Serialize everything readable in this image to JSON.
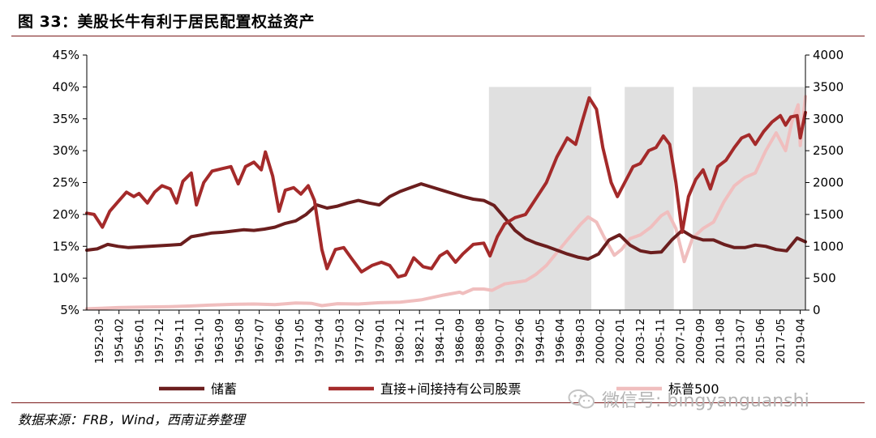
{
  "header": {
    "title": "图 33：美股长牛有利于居民配置权益资产"
  },
  "footer": {
    "source": "数据来源：FRB，Wind，西南证券整理"
  },
  "watermark": {
    "icon": "wechat-icon",
    "text": "微信号: bingyanguanshi"
  },
  "chart_data": {
    "type": "line",
    "x_ticks": [
      "1952-03",
      "1954-02",
      "1956-01",
      "1957-12",
      "1959-11",
      "1961-10",
      "1963-09",
      "1965-08",
      "1967-07",
      "1969-06",
      "1971-05",
      "1973-04",
      "1975-03",
      "1977-02",
      "1979-01",
      "1980-12",
      "1982-11",
      "1984-10",
      "1986-09",
      "1988-08",
      "1990-07",
      "1992-06",
      "1994-05",
      "1996-04",
      "1998-03",
      "2000-02",
      "2002-01",
      "2003-12",
      "2005-11",
      "2007-10",
      "2009-09",
      "2011-08",
      "2013-07",
      "2015-06",
      "2017-05",
      "2019-04"
    ],
    "x_range": [
      1952.0,
      2020.8
    ],
    "y_left": {
      "ticks": [
        "5%",
        "10%",
        "15%",
        "20%",
        "25%",
        "30%",
        "35%",
        "40%",
        "45%"
      ],
      "range": [
        5,
        45
      ]
    },
    "y_right": {
      "ticks": [
        "0",
        "500",
        "1000",
        "1500",
        "2000",
        "2500",
        "3000",
        "3500",
        "4000"
      ],
      "range": [
        0,
        4000
      ]
    },
    "shaded_periods": [
      [
        1990.5,
        2000.3
      ],
      [
        2003.5,
        2008.2
      ],
      [
        2010.0,
        2020.8
      ]
    ],
    "shade_color": "#e0e0e0",
    "legend_position": "bottom",
    "series": [
      {
        "name": "储蓄",
        "axis": "left",
        "color": "#6b1e1e",
        "points": [
          [
            1952.0,
            14.4
          ],
          [
            1953,
            14.6
          ],
          [
            1954,
            15.3
          ],
          [
            1955,
            15.0
          ],
          [
            1956,
            14.8
          ],
          [
            1957,
            14.9
          ],
          [
            1958,
            15.0
          ],
          [
            1959,
            15.1
          ],
          [
            1960,
            15.2
          ],
          [
            1961,
            15.3
          ],
          [
            1962,
            16.5
          ],
          [
            1963,
            16.8
          ],
          [
            1964,
            17.1
          ],
          [
            1965,
            17.2
          ],
          [
            1966,
            17.4
          ],
          [
            1967,
            17.6
          ],
          [
            1968,
            17.5
          ],
          [
            1969,
            17.7
          ],
          [
            1970,
            18.0
          ],
          [
            1971,
            18.6
          ],
          [
            1972,
            19.0
          ],
          [
            1973,
            20.0
          ],
          [
            1974,
            21.5
          ],
          [
            1975,
            21.0
          ],
          [
            1976,
            21.3
          ],
          [
            1977,
            21.8
          ],
          [
            1978,
            22.2
          ],
          [
            1979,
            21.8
          ],
          [
            1980,
            21.5
          ],
          [
            1981,
            22.8
          ],
          [
            1982,
            23.6
          ],
          [
            1983,
            24.2
          ],
          [
            1984,
            24.8
          ],
          [
            1985,
            24.3
          ],
          [
            1986,
            23.8
          ],
          [
            1987,
            23.3
          ],
          [
            1988,
            22.8
          ],
          [
            1989,
            22.4
          ],
          [
            1990,
            22.2
          ],
          [
            1991,
            21.4
          ],
          [
            1992,
            19.5
          ],
          [
            1993,
            17.5
          ],
          [
            1994,
            16.2
          ],
          [
            1995,
            15.5
          ],
          [
            1996,
            15.0
          ],
          [
            1997,
            14.4
          ],
          [
            1998,
            13.8
          ],
          [
            1999,
            13.3
          ],
          [
            2000,
            13.0
          ],
          [
            2001,
            13.8
          ],
          [
            2002,
            16.0
          ],
          [
            2003,
            16.8
          ],
          [
            2004,
            15.2
          ],
          [
            2005,
            14.3
          ],
          [
            2006,
            14.0
          ],
          [
            2007,
            14.1
          ],
          [
            2008,
            16.0
          ],
          [
            2009,
            17.5
          ],
          [
            2010,
            16.5
          ],
          [
            2011,
            16.0
          ],
          [
            2012,
            16.0
          ],
          [
            2013,
            15.3
          ],
          [
            2014,
            14.8
          ],
          [
            2015,
            14.8
          ],
          [
            2016,
            15.2
          ],
          [
            2017,
            15.0
          ],
          [
            2018,
            14.5
          ],
          [
            2019,
            14.3
          ],
          [
            2020,
            16.3
          ],
          [
            2020.8,
            15.7
          ]
        ]
      },
      {
        "name": "直接+间接持有公司股票",
        "axis": "left",
        "color": "#a42a2a",
        "points": [
          [
            1952.0,
            20.2
          ],
          [
            1952.7,
            20.0
          ],
          [
            1953.5,
            18.0
          ],
          [
            1954.2,
            20.5
          ],
          [
            1955,
            22.0
          ],
          [
            1955.8,
            23.5
          ],
          [
            1956.5,
            22.8
          ],
          [
            1957,
            23.3
          ],
          [
            1957.8,
            21.8
          ],
          [
            1958.5,
            23.5
          ],
          [
            1959.2,
            24.5
          ],
          [
            1960,
            24.0
          ],
          [
            1960.6,
            21.8
          ],
          [
            1961.2,
            25.2
          ],
          [
            1962,
            26.5
          ],
          [
            1962.5,
            21.5
          ],
          [
            1963.2,
            25.0
          ],
          [
            1964,
            26.8
          ],
          [
            1965,
            27.2
          ],
          [
            1965.8,
            27.5
          ],
          [
            1966.5,
            24.8
          ],
          [
            1967.2,
            27.5
          ],
          [
            1968,
            28.2
          ],
          [
            1968.7,
            27.0
          ],
          [
            1969.1,
            29.8
          ],
          [
            1969.8,
            26.0
          ],
          [
            1970.4,
            20.5
          ],
          [
            1971,
            23.8
          ],
          [
            1971.8,
            24.2
          ],
          [
            1972.5,
            23.2
          ],
          [
            1973.2,
            24.5
          ],
          [
            1973.8,
            22.2
          ],
          [
            1974.5,
            14.5
          ],
          [
            1975,
            11.5
          ],
          [
            1975.8,
            14.5
          ],
          [
            1976.6,
            14.8
          ],
          [
            1977.3,
            13.2
          ],
          [
            1978.3,
            11.0
          ],
          [
            1979.3,
            12.0
          ],
          [
            1980.2,
            12.5
          ],
          [
            1981,
            12.0
          ],
          [
            1981.8,
            10.2
          ],
          [
            1982.5,
            10.5
          ],
          [
            1983.3,
            13.2
          ],
          [
            1984.2,
            11.8
          ],
          [
            1985,
            11.5
          ],
          [
            1985.8,
            13.5
          ],
          [
            1986.5,
            14.2
          ],
          [
            1987.3,
            12.5
          ],
          [
            1988,
            13.8
          ],
          [
            1989,
            15.3
          ],
          [
            1990,
            15.5
          ],
          [
            1990.6,
            13.5
          ],
          [
            1991.3,
            16.5
          ],
          [
            1992,
            18.5
          ],
          [
            1993,
            19.5
          ],
          [
            1994,
            20.0
          ],
          [
            1995,
            22.5
          ],
          [
            1996,
            25.0
          ],
          [
            1997,
            29.0
          ],
          [
            1998,
            32.0
          ],
          [
            1998.8,
            31.0
          ],
          [
            1999.5,
            35.0
          ],
          [
            2000.1,
            38.3
          ],
          [
            2000.8,
            36.5
          ],
          [
            2001.4,
            30.5
          ],
          [
            2002.2,
            25.0
          ],
          [
            2002.8,
            22.8
          ],
          [
            2003.5,
            25.0
          ],
          [
            2004.3,
            27.5
          ],
          [
            2005,
            28.0
          ],
          [
            2005.8,
            30.0
          ],
          [
            2006.5,
            30.5
          ],
          [
            2007.2,
            32.3
          ],
          [
            2007.8,
            31.0
          ],
          [
            2008.4,
            25.0
          ],
          [
            2009,
            17.2
          ],
          [
            2009.6,
            22.8
          ],
          [
            2010.3,
            25.5
          ],
          [
            2011,
            27.0
          ],
          [
            2011.7,
            24.0
          ],
          [
            2012.4,
            27.5
          ],
          [
            2013.2,
            28.5
          ],
          [
            2014,
            30.5
          ],
          [
            2014.7,
            32.0
          ],
          [
            2015.4,
            32.5
          ],
          [
            2016,
            31.0
          ],
          [
            2016.8,
            33.0
          ],
          [
            2017.6,
            34.5
          ],
          [
            2018.4,
            35.5
          ],
          [
            2018.9,
            34.0
          ],
          [
            2019.4,
            35.3
          ],
          [
            2020,
            35.5
          ],
          [
            2020.3,
            32.0
          ],
          [
            2020.8,
            36.0
          ]
        ]
      },
      {
        "name": "标普500",
        "axis": "right",
        "color": "#f0bebe",
        "points": [
          [
            1952.0,
            20
          ],
          [
            1955,
            40
          ],
          [
            1958,
            50
          ],
          [
            1960,
            55
          ],
          [
            1962,
            65
          ],
          [
            1964,
            80
          ],
          [
            1966,
            90
          ],
          [
            1968,
            95
          ],
          [
            1970,
            85
          ],
          [
            1972,
            110
          ],
          [
            1973.5,
            105
          ],
          [
            1974.5,
            70
          ],
          [
            1976,
            100
          ],
          [
            1978,
            95
          ],
          [
            1980,
            115
          ],
          [
            1982,
            125
          ],
          [
            1984,
            160
          ],
          [
            1986,
            230
          ],
          [
            1987.7,
            280
          ],
          [
            1988,
            260
          ],
          [
            1989,
            330
          ],
          [
            1990,
            330
          ],
          [
            1990.8,
            310
          ],
          [
            1992,
            410
          ],
          [
            1994,
            460
          ],
          [
            1995,
            560
          ],
          [
            1996,
            700
          ],
          [
            1997,
            900
          ],
          [
            1998,
            1100
          ],
          [
            1999.3,
            1350
          ],
          [
            2000,
            1460
          ],
          [
            2000.8,
            1380
          ],
          [
            2001.5,
            1150
          ],
          [
            2002.5,
            860
          ],
          [
            2003.2,
            950
          ],
          [
            2004,
            1120
          ],
          [
            2005,
            1180
          ],
          [
            2006,
            1300
          ],
          [
            2007,
            1480
          ],
          [
            2007.6,
            1540
          ],
          [
            2008.4,
            1280
          ],
          [
            2009.2,
            760
          ],
          [
            2010,
            1130
          ],
          [
            2011,
            1280
          ],
          [
            2012,
            1380
          ],
          [
            2013,
            1700
          ],
          [
            2014,
            1950
          ],
          [
            2015,
            2080
          ],
          [
            2016,
            2150
          ],
          [
            2017,
            2500
          ],
          [
            2018,
            2780
          ],
          [
            2018.9,
            2500
          ],
          [
            2019.5,
            2950
          ],
          [
            2020.1,
            3220
          ],
          [
            2020.3,
            2580
          ],
          [
            2020.8,
            3350
          ]
        ]
      }
    ]
  }
}
